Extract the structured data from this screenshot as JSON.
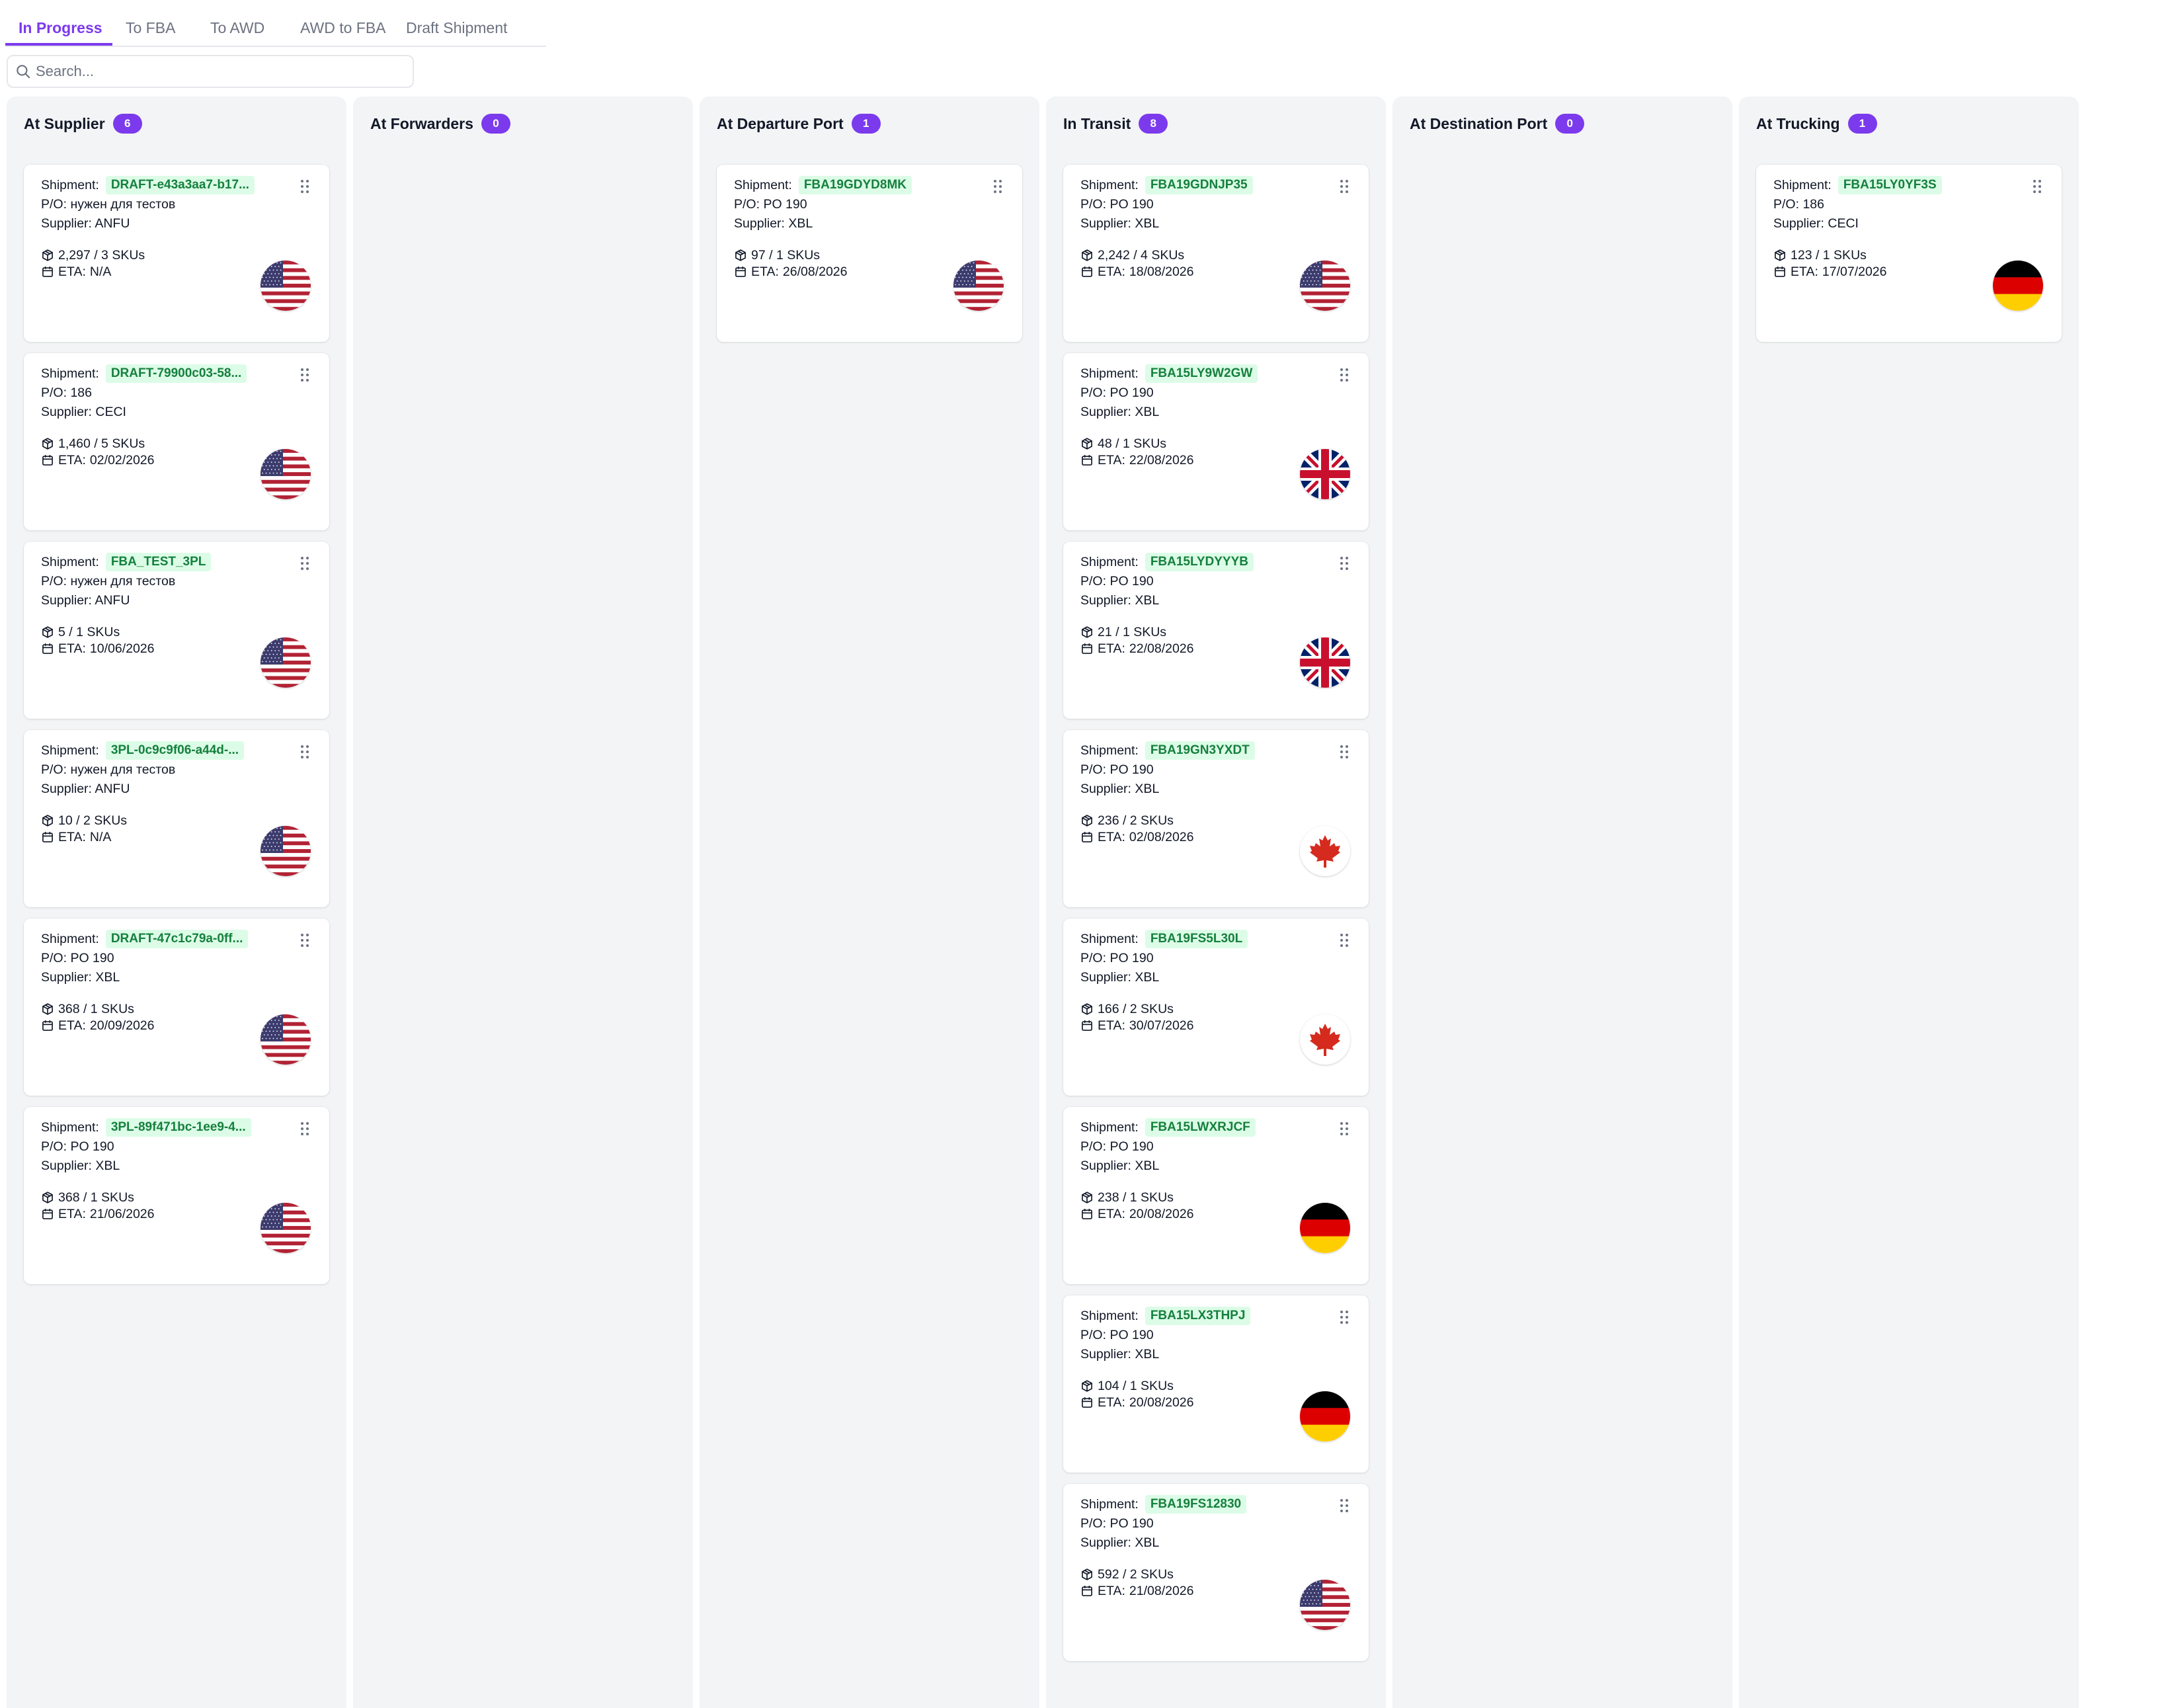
{
  "tabs": [
    {
      "label": "In Progress",
      "active": true
    },
    {
      "label": "To FBA",
      "active": false
    },
    {
      "label": "To AWD",
      "active": false
    },
    {
      "label": "AWD to FBA",
      "active": false
    },
    {
      "label": "Draft Shipment",
      "active": false
    }
  ],
  "search": {
    "placeholder": "Search...",
    "value": ""
  },
  "labels": {
    "shipment": "Shipment:",
    "po": "P/O:",
    "supplier": "Supplier:",
    "eta": "ETA:"
  },
  "colors": {
    "accent": "#7c3aed",
    "column_bg": "#f3f4f6",
    "badge_bg": "#dcfce7",
    "badge_text": "#15803d"
  },
  "columns": [
    {
      "title": "At Supplier",
      "count": "6",
      "cards": [
        {
          "shipment": "DRAFT-e43a3aa7-b17...",
          "po": "нужен для тестов",
          "supplier": "ANFU",
          "quantity": "2,297 / 3 SKUs",
          "eta": "N/A",
          "flag": "us"
        },
        {
          "shipment": "DRAFT-79900c03-58...",
          "po": "186",
          "supplier": "CECI",
          "quantity": "1,460 / 5 SKUs",
          "eta": "02/02/2026",
          "flag": "us"
        },
        {
          "shipment": "FBA_TEST_3PL",
          "po": "нужен для тестов",
          "supplier": "ANFU",
          "quantity": "5 / 1 SKUs",
          "eta": "10/06/2026",
          "flag": "us"
        },
        {
          "shipment": "3PL-0c9c9f06-a44d-...",
          "po": "нужен для тестов",
          "supplier": "ANFU",
          "quantity": "10 / 2 SKUs",
          "eta": "N/A",
          "flag": "us"
        },
        {
          "shipment": "DRAFT-47c1c79a-0ff...",
          "po": "PO 190",
          "supplier": "XBL",
          "quantity": "368 / 1 SKUs",
          "eta": "20/09/2026",
          "flag": "us"
        },
        {
          "shipment": "3PL-89f471bc-1ee9-4...",
          "po": "PO 190",
          "supplier": "XBL",
          "quantity": "368 / 1 SKUs",
          "eta": "21/06/2026",
          "flag": "us"
        }
      ]
    },
    {
      "title": "At Forwarders",
      "count": "0",
      "cards": []
    },
    {
      "title": "At Departure Port",
      "count": "1",
      "cards": [
        {
          "shipment": "FBA19GDYD8MK",
          "po": "PO 190",
          "supplier": "XBL",
          "quantity": "97 / 1 SKUs",
          "eta": "26/08/2026",
          "flag": "us"
        }
      ]
    },
    {
      "title": "In Transit",
      "count": "8",
      "cards": [
        {
          "shipment": "FBA19GDNJP35",
          "po": "PO 190",
          "supplier": "XBL",
          "quantity": "2,242 / 4 SKUs",
          "eta": "18/08/2026",
          "flag": "us"
        },
        {
          "shipment": "FBA15LY9W2GW",
          "po": "PO 190",
          "supplier": "XBL",
          "quantity": "48 / 1 SKUs",
          "eta": "22/08/2026",
          "flag": "gb"
        },
        {
          "shipment": "FBA15LYDYYYB",
          "po": "PO 190",
          "supplier": "XBL",
          "quantity": "21 / 1 SKUs",
          "eta": "22/08/2026",
          "flag": "gb"
        },
        {
          "shipment": "FBA19GN3YXDT",
          "po": "PO 190",
          "supplier": "XBL",
          "quantity": "236 / 2 SKUs",
          "eta": "02/08/2026",
          "flag": "ca"
        },
        {
          "shipment": "FBA19FS5L30L",
          "po": "PO 190",
          "supplier": "XBL",
          "quantity": "166 / 2 SKUs",
          "eta": "30/07/2026",
          "flag": "ca"
        },
        {
          "shipment": "FBA15LWXRJCF",
          "po": "PO 190",
          "supplier": "XBL",
          "quantity": "238 / 1 SKUs",
          "eta": "20/08/2026",
          "flag": "de"
        },
        {
          "shipment": "FBA15LX3THPJ",
          "po": "PO 190",
          "supplier": "XBL",
          "quantity": "104 / 1 SKUs",
          "eta": "20/08/2026",
          "flag": "de"
        },
        {
          "shipment": "FBA19FS12830",
          "po": "PO 190",
          "supplier": "XBL",
          "quantity": "592 / 2 SKUs",
          "eta": "21/08/2026",
          "flag": "us"
        }
      ]
    },
    {
      "title": "At Destination Port",
      "count": "0",
      "cards": []
    },
    {
      "title": "At Trucking",
      "count": "1",
      "cards": [
        {
          "shipment": "FBA15LY0YF3S",
          "po": "186",
          "supplier": "CECI",
          "quantity": "123 / 1 SKUs",
          "eta": "17/07/2026",
          "flag": "de"
        }
      ]
    }
  ]
}
